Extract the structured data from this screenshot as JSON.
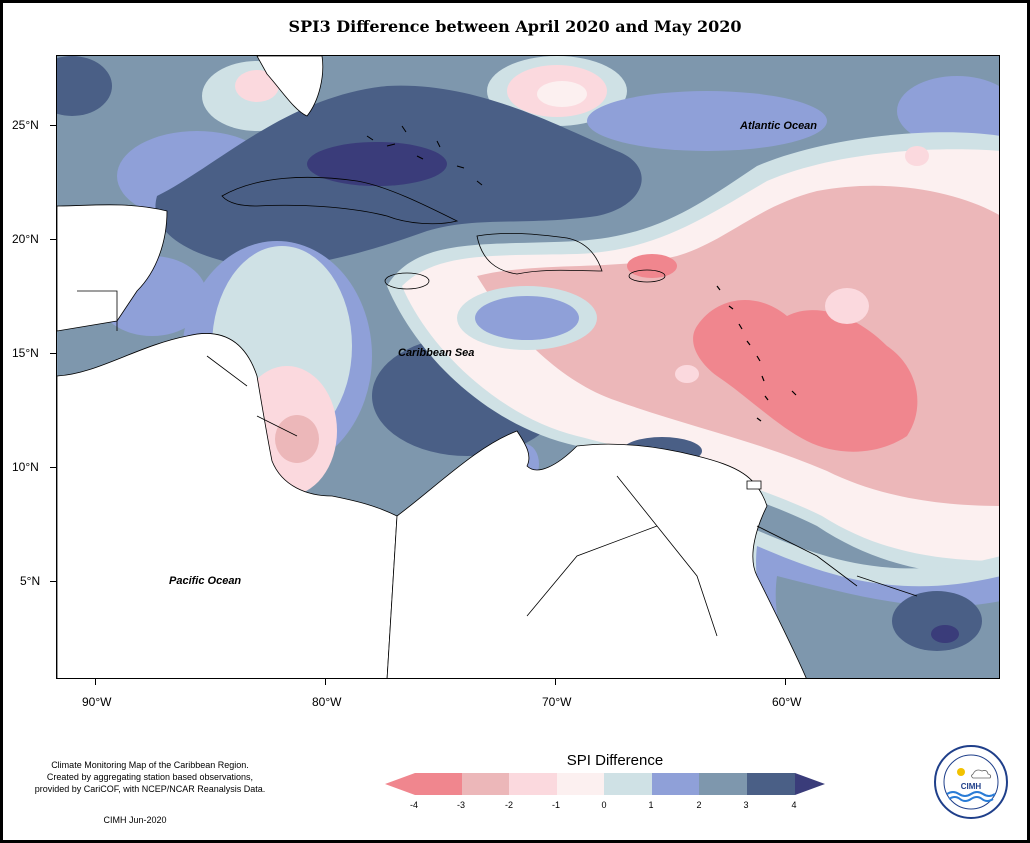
{
  "title": "SPI3 Difference between April 2020 and May 2020",
  "map": {
    "lon_labels": [
      "90°W",
      "80°W",
      "70°W",
      "60°W"
    ],
    "lat_labels": [
      "25°N",
      "20°N",
      "15°N",
      "10°N",
      "5°N"
    ],
    "ocean_labels": {
      "atlantic": "Atlantic Ocean",
      "caribbean": "Caribbean Sea",
      "pacific": "Pacific Ocean"
    }
  },
  "legend": {
    "title": "SPI Difference",
    "tick_labels": [
      "-4",
      "-3",
      "-2",
      "-1",
      "0",
      "1",
      "2",
      "3",
      "4"
    ],
    "colors": [
      "#f0868e",
      "#ecb7b9",
      "#fbd9de",
      "#fcf0f0",
      "#cfe1e5",
      "#8fa0d8",
      "#7e97ad",
      "#4a5f86",
      "#3a3c7a"
    ]
  },
  "footer": {
    "line1": "Climate Monitoring Map of the Caribbean Region.",
    "line2": "Created by aggregating station based observations,",
    "line3": "provided by CariCOF, with NCEP/NCAR Reanalysis Data.",
    "credit": "CIMH Jun-2020"
  },
  "logo": {
    "text": "CIMH"
  }
}
